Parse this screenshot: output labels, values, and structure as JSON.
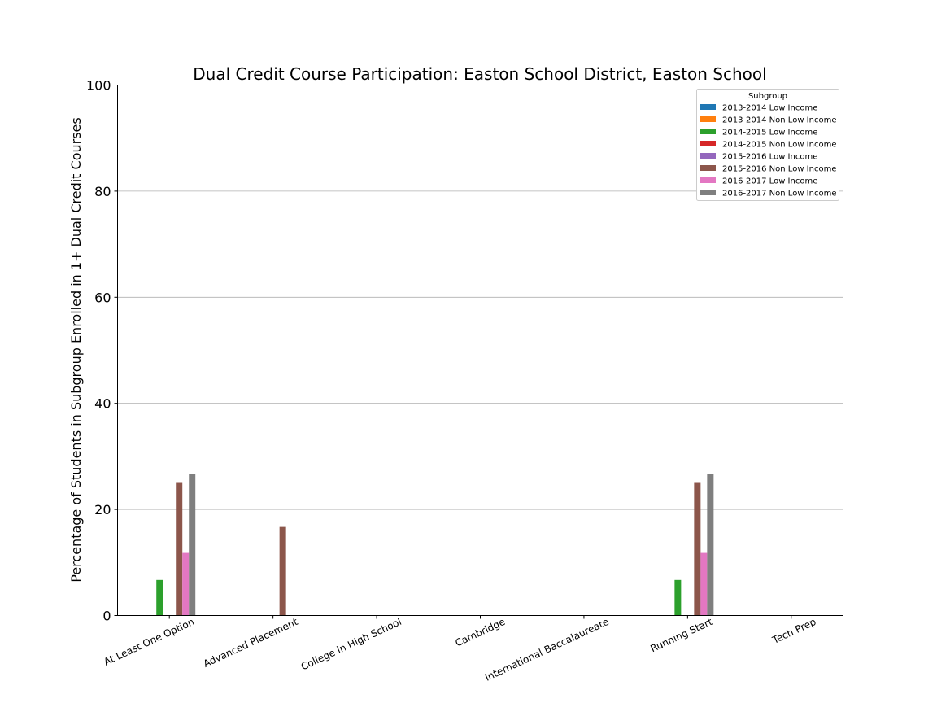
{
  "chart_data": {
    "type": "bar",
    "title": "Dual Credit Course Participation: Easton School District, Easton School",
    "xlabel": "",
    "ylabel": "Percentage of Students in Subgroup Enrolled in 1+ Dual Credit Courses",
    "ylim": [
      0,
      100
    ],
    "yticks": [
      0,
      20,
      40,
      60,
      80,
      100
    ],
    "grid": "horizontal",
    "legend_title": "Subgroup",
    "legend_position": "top-right",
    "categories": [
      "At Least One Option",
      "Advanced Placement",
      "College in High School",
      "Cambridge",
      "International Baccalaureate",
      "Running Start",
      "Tech Prep"
    ],
    "series": [
      {
        "name": "2013-2014 Low Income",
        "color": "#1f77b4",
        "values": [
          0,
          0,
          0,
          0,
          0,
          0,
          0
        ]
      },
      {
        "name": "2013-2014 Non Low Income",
        "color": "#ff7f0e",
        "values": [
          0,
          0,
          0,
          0,
          0,
          0,
          0
        ]
      },
      {
        "name": "2014-2015 Low Income",
        "color": "#2ca02c",
        "values": [
          6.7,
          0,
          0,
          0,
          0,
          6.7,
          0
        ]
      },
      {
        "name": "2014-2015 Non Low Income",
        "color": "#d62728",
        "values": [
          0,
          0,
          0,
          0,
          0,
          0,
          0
        ]
      },
      {
        "name": "2015-2016 Low Income",
        "color": "#9467bd",
        "values": [
          0,
          0,
          0,
          0,
          0,
          0,
          0
        ]
      },
      {
        "name": "2015-2016 Non Low Income",
        "color": "#8c564b",
        "values": [
          25,
          16.7,
          0,
          0,
          0,
          25,
          0
        ]
      },
      {
        "name": "2016-2017 Low Income",
        "color": "#e377c2",
        "values": [
          11.8,
          0,
          0,
          0,
          0,
          11.8,
          0
        ]
      },
      {
        "name": "2016-2017 Non Low Income",
        "color": "#7f7f7f",
        "values": [
          26.7,
          0,
          0,
          0,
          0,
          26.7,
          0
        ]
      }
    ]
  }
}
